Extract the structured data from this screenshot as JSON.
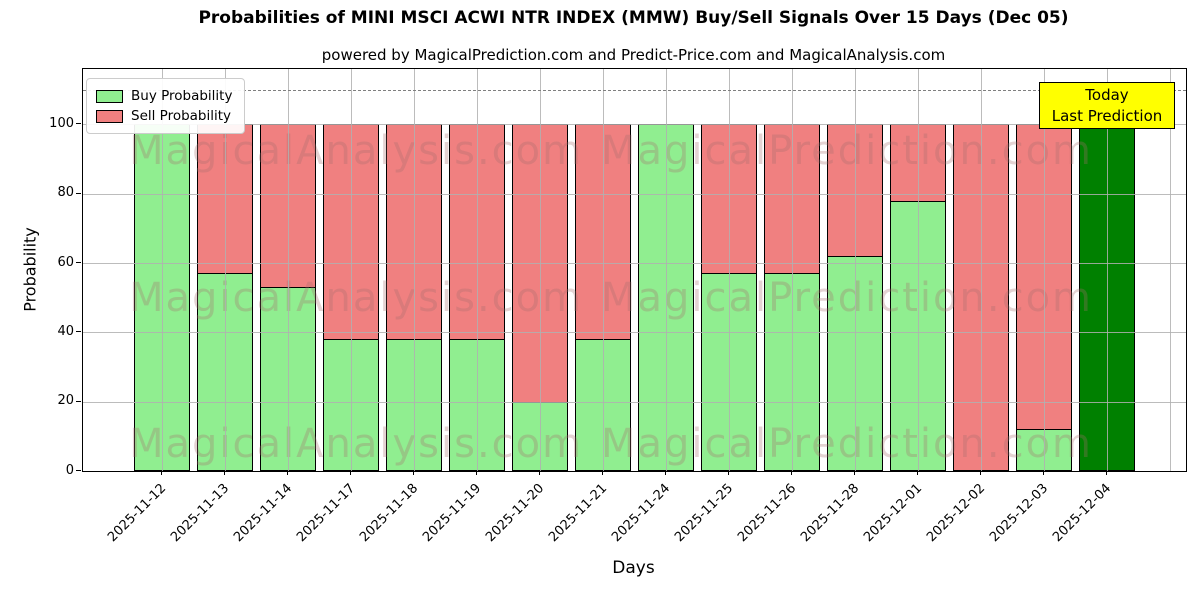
{
  "title": "Probabilities of MINI MSCI ACWI NTR INDEX (MMW) Buy/Sell Signals Over 15 Days (Dec 05)",
  "subtitle": "powered by MagicalPrediction.com and Predict-Price.com and MagicalAnalysis.com",
  "legend": {
    "buy_label": "Buy Probability",
    "sell_label": "Sell Probability"
  },
  "annotation": {
    "line1": "Today",
    "line2": "Last Prediction",
    "bg_color": "#ffff00"
  },
  "axes": {
    "xlabel": "Days",
    "ylabel": "Probability",
    "yticks": [
      0,
      20,
      40,
      60,
      80,
      100
    ]
  },
  "watermarks": {
    "left": "MagicalAnalysis.com",
    "right": "MagicalPrediction.com"
  },
  "colors": {
    "buy": "#90ee90",
    "sell": "#f08080",
    "today_bar": "#008000",
    "grid": "#b0b0b0",
    "threshold": "#7f7f7f"
  },
  "chart_data": {
    "type": "bar",
    "stacked": true,
    "title": "Probabilities of MINI MSCI ACWI NTR INDEX (MMW) Buy/Sell Signals Over 15 Days (Dec 05)",
    "xlabel": "Days",
    "ylabel": "Probability",
    "ylim": [
      0,
      116
    ],
    "threshold_line": 110,
    "grid": true,
    "legend_position": "upper-left",
    "categories": [
      "2025-11-12",
      "2025-11-13",
      "2025-11-14",
      "2025-11-17",
      "2025-11-18",
      "2025-11-19",
      "2025-11-20",
      "2025-11-21",
      "2025-11-24",
      "2025-11-25",
      "2025-11-26",
      "2025-11-28",
      "2025-12-01",
      "2025-12-02",
      "2025-12-03",
      "2025-12-04"
    ],
    "series": [
      {
        "name": "Buy Probability",
        "color": "#90ee90",
        "values": [
          100,
          57,
          53,
          38,
          38,
          38,
          20,
          38,
          100,
          57,
          57,
          62,
          78,
          0,
          12,
          100
        ]
      },
      {
        "name": "Sell Probability",
        "color": "#f08080",
        "values": [
          0,
          43,
          47,
          62,
          62,
          62,
          80,
          62,
          0,
          43,
          43,
          38,
          22,
          100,
          88,
          0
        ]
      }
    ],
    "special_bars": {
      "15": {
        "color": "#008000",
        "note": "Today Last Prediction"
      }
    },
    "extra_unlabeled_slot": true
  }
}
